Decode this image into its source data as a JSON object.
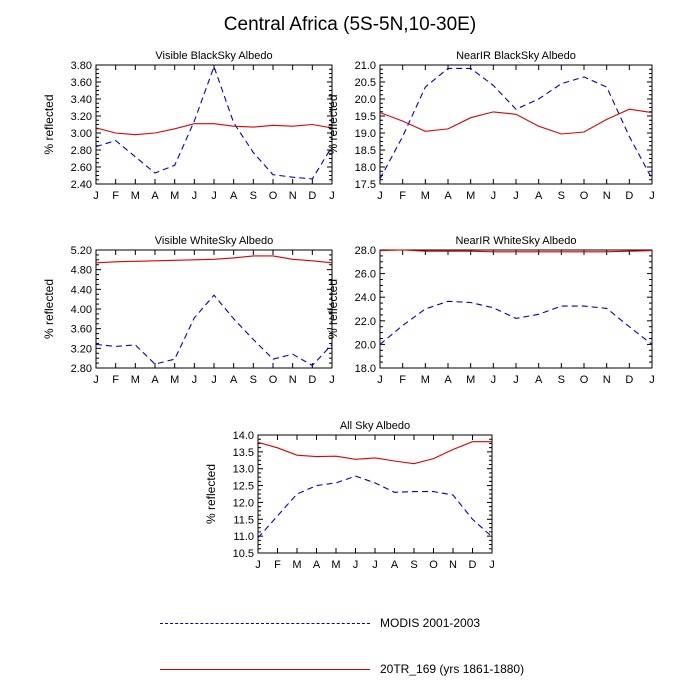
{
  "title": "Central Africa (5S-5N,10-30E)",
  "colors": {
    "modis": "#0000cc",
    "model": "#dd0000"
  },
  "legend": {
    "modis_label": "MODIS 2001-2003",
    "model_label": "20TR_169 (yrs 1861-1880)"
  },
  "chart_data": [
    {
      "type": "line",
      "title": "Visible BlackSky Albedo",
      "ylabel": "% reflected",
      "ylim": [
        2.4,
        3.8
      ],
      "yticks": [
        "2.40",
        "2.60",
        "2.80",
        "3.00",
        "3.20",
        "3.40",
        "3.60",
        "3.80"
      ],
      "categories": [
        "J",
        "F",
        "M",
        "A",
        "M",
        "J",
        "J",
        "A",
        "S",
        "O",
        "N",
        "D",
        "J"
      ],
      "series": [
        {
          "name": "MODIS 2001-2003",
          "style": "dashed",
          "values": [
            2.84,
            2.91,
            2.72,
            2.53,
            2.62,
            3.14,
            3.78,
            3.12,
            2.77,
            2.51,
            2.48,
            2.46,
            2.84
          ]
        },
        {
          "name": "20TR_169 (yrs 1861-1880)",
          "style": "solid",
          "values": [
            3.06,
            3.0,
            2.98,
            3.0,
            3.05,
            3.11,
            3.11,
            3.08,
            3.07,
            3.09,
            3.08,
            3.1,
            3.06
          ]
        }
      ]
    },
    {
      "type": "line",
      "title": "NearIR BlackSky Albedo",
      "ylabel": "% reflected",
      "ylim": [
        17.5,
        21.0
      ],
      "yticks": [
        "17.5",
        "18.0",
        "18.5",
        "19.0",
        "19.5",
        "20.0",
        "20.5",
        "21.0"
      ],
      "categories": [
        "J",
        "F",
        "M",
        "A",
        "M",
        "J",
        "J",
        "A",
        "S",
        "O",
        "N",
        "D",
        "J"
      ],
      "series": [
        {
          "name": "MODIS 2001-2003",
          "style": "dashed",
          "values": [
            17.65,
            18.9,
            20.35,
            20.9,
            20.9,
            20.4,
            19.7,
            20.0,
            20.45,
            20.65,
            20.35,
            18.9,
            17.65
          ]
        },
        {
          "name": "20TR_169 (yrs 1861-1880)",
          "style": "solid",
          "values": [
            19.6,
            19.35,
            19.05,
            19.12,
            19.45,
            19.62,
            19.55,
            19.2,
            18.97,
            19.03,
            19.4,
            19.7,
            19.6
          ]
        }
      ]
    },
    {
      "type": "line",
      "title": "Visible WhiteSky Albedo",
      "ylabel": "% reflected",
      "ylim": [
        2.8,
        5.2
      ],
      "yticks": [
        "2.80",
        "3.20",
        "3.60",
        "4.00",
        "4.40",
        "4.80",
        "5.20"
      ],
      "categories": [
        "J",
        "F",
        "M",
        "A",
        "M",
        "J",
        "J",
        "A",
        "S",
        "O",
        "N",
        "D",
        "J"
      ],
      "series": [
        {
          "name": "MODIS 2001-2003",
          "style": "dashed",
          "values": [
            3.28,
            3.24,
            3.27,
            2.88,
            2.98,
            3.82,
            4.28,
            3.8,
            3.38,
            2.98,
            3.08,
            2.85,
            3.28
          ]
        },
        {
          "name": "20TR_169 (yrs 1861-1880)",
          "style": "solid",
          "values": [
            4.94,
            4.96,
            4.97,
            4.98,
            4.99,
            5.0,
            5.01,
            5.04,
            5.08,
            5.08,
            5.01,
            4.98,
            4.94
          ]
        }
      ]
    },
    {
      "type": "line",
      "title": "NearIR WhiteSky Albedo",
      "ylabel": "% reflected",
      "ylim": [
        18.0,
        28.0
      ],
      "yticks": [
        "18.0",
        "20.0",
        "22.0",
        "24.0",
        "26.0",
        "28.0"
      ],
      "categories": [
        "J",
        "F",
        "M",
        "A",
        "M",
        "J",
        "J",
        "A",
        "S",
        "O",
        "N",
        "D",
        "J"
      ],
      "series": [
        {
          "name": "MODIS 2001-2003",
          "style": "dashed",
          "values": [
            20.0,
            21.6,
            23.0,
            23.65,
            23.55,
            23.1,
            22.2,
            22.55,
            23.25,
            23.25,
            23.05,
            21.5,
            20.0
          ]
        },
        {
          "name": "20TR_169 (yrs 1861-1880)",
          "style": "solid",
          "values": [
            27.95,
            28.0,
            27.9,
            27.9,
            27.9,
            27.85,
            27.85,
            27.85,
            27.85,
            27.85,
            27.85,
            27.9,
            27.95
          ]
        }
      ]
    },
    {
      "type": "line",
      "title": "All Sky Albedo",
      "ylabel": "% reflected",
      "ylim": [
        10.5,
        14.0
      ],
      "yticks": [
        "10.5",
        "11.0",
        "11.5",
        "12.0",
        "12.5",
        "13.0",
        "13.5",
        "14.0"
      ],
      "categories": [
        "J",
        "F",
        "M",
        "A",
        "M",
        "J",
        "J",
        "A",
        "S",
        "O",
        "N",
        "D",
        "J"
      ],
      "series": [
        {
          "name": "MODIS 2001-2003",
          "style": "dashed",
          "values": [
            10.95,
            11.6,
            12.25,
            12.5,
            12.58,
            12.78,
            12.58,
            12.3,
            12.32,
            12.32,
            12.22,
            11.5,
            10.98
          ]
        },
        {
          "name": "20TR_169 (yrs 1861-1880)",
          "style": "solid",
          "values": [
            13.78,
            13.62,
            13.4,
            13.36,
            13.37,
            13.28,
            13.32,
            13.23,
            13.15,
            13.3,
            13.57,
            13.8,
            13.8
          ]
        }
      ]
    }
  ]
}
